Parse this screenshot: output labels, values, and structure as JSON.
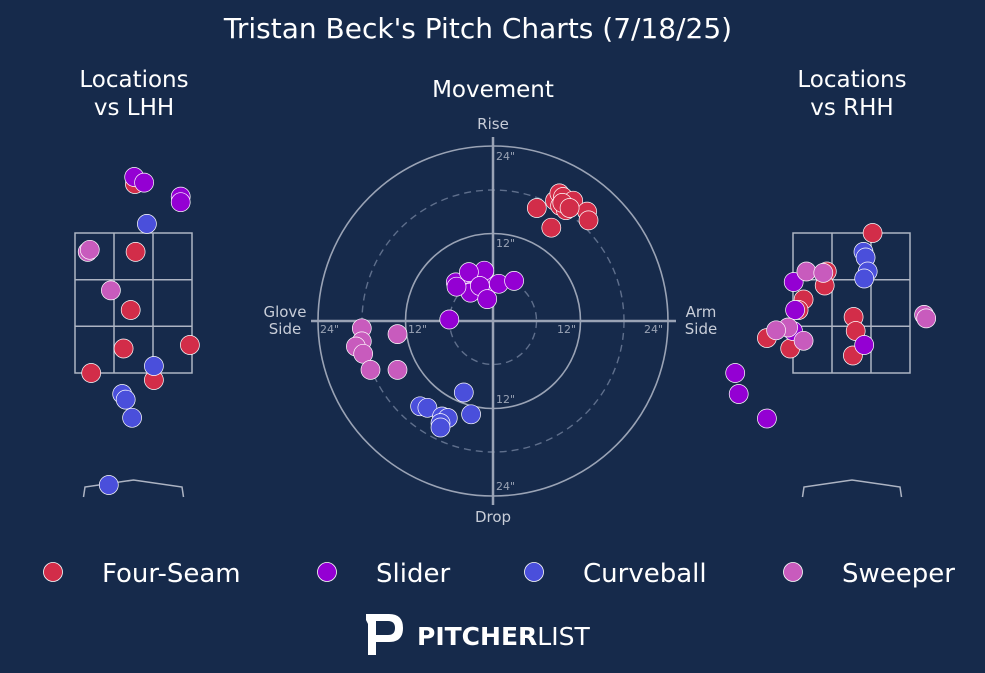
{
  "title": "Tristan Beck's Pitch Charts (7/18/25)",
  "panels": {
    "locations_lhh_title_1": "Locations",
    "locations_lhh_title_2": "vs LHH",
    "movement_title": "Movement",
    "locations_rhh_title_1": "Locations",
    "locations_rhh_title_2": "vs RHH"
  },
  "movement_axes": {
    "top": "Rise",
    "bottom": "Drop",
    "left_1": "Glove",
    "left_2": "Side",
    "right_1": "Arm",
    "right_2": "Side",
    "ring_labels": [
      "24\"",
      "12\"",
      "12\"",
      "24\"",
      "24\"",
      "12\"",
      "12\"",
      "24\""
    ]
  },
  "colors": {
    "background": "#162a4b",
    "Four-Seam": "#d22d49",
    "Slider": "#9400d3",
    "Curveball": "#4a4fdb",
    "Sweeper": "#c85bbd"
  },
  "legend": [
    "Four-Seam",
    "Slider",
    "Curveball",
    "Sweeper"
  ],
  "brand": {
    "part1": "PITCHER",
    "part2": "LIST"
  },
  "chart_data": [
    {
      "type": "scatter",
      "panel": "locations-vs-lhh",
      "title": "Locations vs LHH",
      "x_unit": "ft from center of plate (catcher view)",
      "y_unit": "ft above ground",
      "xlim": [
        -2.5,
        2.5
      ],
      "ylim": [
        -0.5,
        5.8
      ],
      "zone": {
        "x": [
          -0.83,
          0.83
        ],
        "y": [
          1.5,
          3.5
        ]
      },
      "series": [
        {
          "name": "Four-Seam",
          "points": [
            [
              0.02,
              4.2
            ],
            [
              0.03,
              3.23
            ],
            [
              -0.04,
              2.4
            ],
            [
              -0.14,
              1.85
            ],
            [
              0.8,
              1.9
            ],
            [
              -0.6,
              1.5
            ],
            [
              0.29,
              1.4
            ]
          ]
        },
        {
          "name": "Slider",
          "points": [
            [
              0.01,
              4.3
            ],
            [
              0.15,
              4.22
            ],
            [
              0.67,
              4.02
            ],
            [
              0.67,
              3.94
            ]
          ]
        },
        {
          "name": "Curveball",
          "points": [
            [
              0.19,
              3.63
            ],
            [
              0.29,
              1.6
            ],
            [
              -0.16,
              1.2
            ],
            [
              -0.11,
              1.12
            ],
            [
              -0.02,
              0.86
            ],
            [
              -0.35,
              -0.1
            ]
          ]
        },
        {
          "name": "Sweeper",
          "points": [
            [
              -0.65,
              3.23
            ],
            [
              -0.62,
              3.26
            ],
            [
              -0.32,
              2.68
            ]
          ]
        }
      ]
    },
    {
      "type": "scatter",
      "panel": "movement",
      "title": "Movement",
      "x_unit": "inches of horizontal break (glove side negative, arm side positive)",
      "y_unit": "inches of induced vertical break",
      "xlim": [
        -24,
        24
      ],
      "ylim": [
        -24,
        24
      ],
      "rings": [
        6,
        12,
        18,
        24
      ],
      "series": [
        {
          "name": "Four-Seam",
          "points": [
            [
              8.5,
              16.5
            ],
            [
              9.1,
              17.5
            ],
            [
              9.2,
              15.8
            ],
            [
              9.6,
              17
            ],
            [
              10,
              15.2
            ],
            [
              11,
              16.5
            ],
            [
              12.9,
              15
            ],
            [
              13.1,
              13.8
            ],
            [
              6,
              15.5
            ],
            [
              8,
              12.8
            ],
            [
              9.5,
              16.2
            ],
            [
              10.5,
              15.5
            ]
          ]
        },
        {
          "name": "Slider",
          "points": [
            [
              -5.1,
              5.3
            ],
            [
              -3,
              5.3
            ],
            [
              -1.2,
              5
            ],
            [
              -1.2,
              6.9
            ],
            [
              -3.1,
              4
            ],
            [
              -3.1,
              3.9
            ],
            [
              -5,
              4.7
            ],
            [
              -3.3,
              6.7
            ],
            [
              -1.8,
              4.8
            ],
            [
              -0.8,
              3
            ],
            [
              0.8,
              5.1
            ],
            [
              2.9,
              5.5
            ],
            [
              -6,
              0.2
            ]
          ]
        },
        {
          "name": "Curveball",
          "points": [
            [
              -4,
              -9.8
            ],
            [
              -10,
              -11.7
            ],
            [
              -9,
              -11.9
            ],
            [
              -7,
              -13.1
            ],
            [
              -6.2,
              -13.3
            ],
            [
              -7.2,
              -14
            ],
            [
              -7.2,
              -14.6
            ],
            [
              -3,
              -12.8
            ]
          ]
        },
        {
          "name": "Sweeper",
          "points": [
            [
              -18,
              -1
            ],
            [
              -18,
              -2.8
            ],
            [
              -18.8,
              -3.5
            ],
            [
              -17.8,
              -4.5
            ],
            [
              -16.8,
              -6.7
            ],
            [
              -13.1,
              -6.7
            ],
            [
              -13.1,
              -1.8
            ]
          ]
        }
      ]
    },
    {
      "type": "scatter",
      "panel": "locations-vs-rhh",
      "title": "Locations vs RHH",
      "x_unit": "ft from center of plate (catcher view)",
      "y_unit": "ft above ground",
      "xlim": [
        -2.5,
        2.5
      ],
      "ylim": [
        -0.5,
        5.8
      ],
      "zone": {
        "x": [
          -0.83,
          0.83
        ],
        "y": [
          1.5,
          3.5
        ]
      },
      "series": [
        {
          "name": "Four-Seam",
          "points": [
            [
              0.3,
              3.5
            ],
            [
              -0.35,
              2.95
            ],
            [
              -0.38,
              2.75
            ],
            [
              -0.68,
              2.55
            ],
            [
              -0.75,
              2.4
            ],
            [
              0.03,
              2.3
            ],
            [
              0.06,
              2.1
            ],
            [
              -1.2,
              2
            ],
            [
              -0.87,
              1.85
            ],
            [
              0.02,
              1.75
            ]
          ]
        },
        {
          "name": "Slider",
          "points": [
            [
              -0.82,
              2.8
            ],
            [
              -0.8,
              2.4
            ],
            [
              -0.83,
              2.1
            ],
            [
              0.18,
              1.9
            ],
            [
              -1.65,
              1.5
            ],
            [
              -1.6,
              1.2
            ],
            [
              -1.2,
              0.85
            ]
          ]
        },
        {
          "name": "Curveball",
          "points": [
            [
              0.17,
              3.23
            ],
            [
              0.2,
              3.15
            ],
            [
              0.23,
              2.95
            ],
            [
              0.18,
              2.85
            ]
          ]
        },
        {
          "name": "Sweeper",
          "points": [
            [
              -0.64,
              2.95
            ],
            [
              -0.4,
              2.93
            ],
            [
              -0.9,
              2.15
            ],
            [
              -1.07,
              2.11
            ],
            [
              -0.68,
              1.96
            ],
            [
              1.03,
              2.33
            ],
            [
              1.06,
              2.28
            ]
          ]
        }
      ]
    }
  ]
}
